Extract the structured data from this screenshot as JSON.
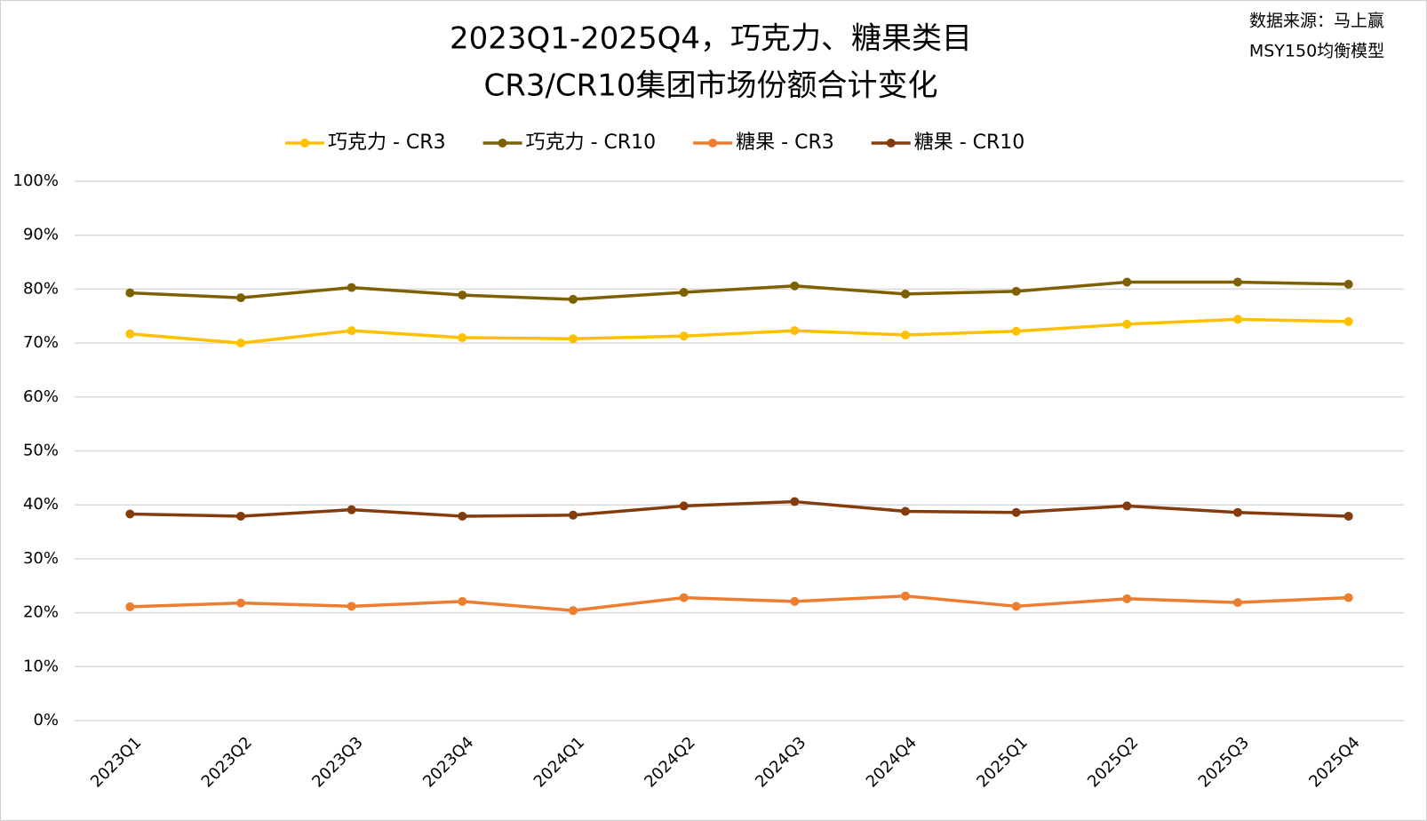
{
  "chart_data": {
    "type": "line",
    "title": [
      "2023Q1-2025Q4，巧克力、糖果类目",
      "CR3/CR10集团市场份额合计变化"
    ],
    "source": [
      "数据来源：马上赢",
      "MSY150均衡模型"
    ],
    "categories": [
      "2023Q1",
      "2023Q2",
      "2023Q3",
      "2023Q4",
      "2024Q1",
      "2024Q2",
      "2024Q3",
      "2024Q4",
      "2025Q1",
      "2025Q2",
      "2025Q3",
      "2025Q4"
    ],
    "series": [
      {
        "name": "巧克力 - CR3",
        "color": "#FFC000",
        "values": [
          71.7,
          70.0,
          72.3,
          71.0,
          70.8,
          71.3,
          72.3,
          71.5,
          72.2,
          73.5,
          74.4,
          74.0
        ]
      },
      {
        "name": "巧克力 - CR10",
        "color": "#7F6000",
        "values": [
          79.3,
          78.4,
          80.3,
          78.9,
          78.1,
          79.4,
          80.6,
          79.1,
          79.6,
          81.3,
          81.3,
          80.9
        ]
      },
      {
        "name": "糖果 - CR3",
        "color": "#ED7D31",
        "values": [
          21.1,
          21.8,
          21.2,
          22.1,
          20.4,
          22.8,
          22.1,
          23.1,
          21.2,
          22.6,
          21.9,
          22.8
        ]
      },
      {
        "name": "糖果 - CR10",
        "color": "#843C0C",
        "values": [
          38.3,
          37.9,
          39.1,
          37.9,
          38.1,
          39.8,
          40.6,
          38.8,
          38.6,
          39.8,
          38.6,
          37.9
        ]
      }
    ],
    "ylim": [
      0,
      100
    ],
    "yticks": [
      {
        "value": 0,
        "label": "0%"
      },
      {
        "value": 10,
        "label": "10%"
      },
      {
        "value": 20,
        "label": "20%"
      },
      {
        "value": 30,
        "label": "30%"
      },
      {
        "value": 40,
        "label": "40%"
      },
      {
        "value": 50,
        "label": "50%"
      },
      {
        "value": 60,
        "label": "60%"
      },
      {
        "value": 70,
        "label": "70%"
      },
      {
        "value": 80,
        "label": "80%"
      },
      {
        "value": 90,
        "label": "90%"
      },
      {
        "value": 100,
        "label": "100%"
      }
    ],
    "grid": true,
    "legend": "top"
  }
}
